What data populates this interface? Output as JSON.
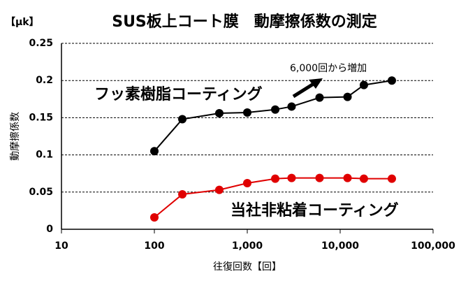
{
  "chart_data": {
    "type": "line",
    "title": "SUS板上コート膜　動摩擦係数の測定",
    "y_unit": "【μk】",
    "y_label": "動摩擦係数",
    "x_label": "往復回数【回】",
    "annotation": "6,000回から増加",
    "x_log": true,
    "grid": true,
    "x": [
      100,
      200,
      500,
      1000,
      2000,
      3000,
      6000,
      12000,
      18000,
      36000
    ],
    "series": [
      {
        "name": "フッ素樹脂コーティング",
        "color": "#000000",
        "values": [
          0.105,
          0.148,
          0.156,
          0.157,
          0.161,
          0.165,
          0.177,
          0.178,
          0.194,
          0.2
        ]
      },
      {
        "name": "当社非粘着コーティング",
        "color": "#e00000",
        "values": [
          0.016,
          0.047,
          0.053,
          0.062,
          0.068,
          0.069,
          0.069,
          0.069,
          0.068,
          0.068
        ]
      }
    ],
    "xlim": [
      10,
      100000
    ],
    "xticks": [
      10,
      100,
      {
        "value": 1000,
        "label": "1,000"
      },
      {
        "value": 10000,
        "label": "10,000"
      },
      {
        "value": 100000,
        "label": "100,000"
      }
    ],
    "ylim": [
      0,
      0.25
    ],
    "yticks": [
      0,
      0.05,
      0.1,
      0.15,
      0.2,
      0.25
    ]
  }
}
